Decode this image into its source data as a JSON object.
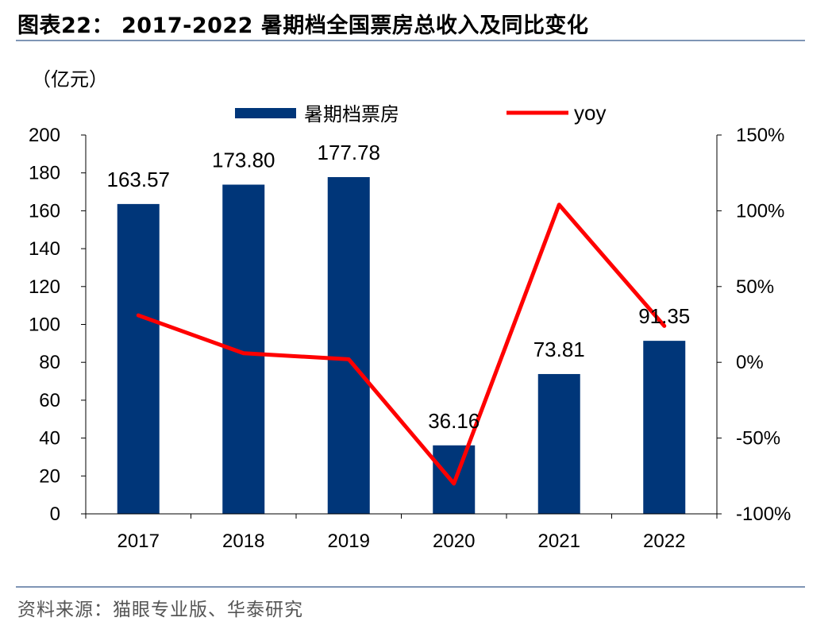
{
  "header": {
    "title": "图表22：  2017-2022 暑期档全国票房总收入及同比变化"
  },
  "unit_label": "（亿元）",
  "footer": {
    "source": "资料来源：猫眼专业版、华泰研究"
  },
  "colors": {
    "bar": "#003679",
    "line": "#ff0000",
    "rule": "#7f95b5"
  },
  "chart_data": {
    "type": "bar+line",
    "categories": [
      "2017",
      "2018",
      "2019",
      "2020",
      "2021",
      "2022"
    ],
    "series": [
      {
        "name": "暑期档票房",
        "type": "bar",
        "axis": "left",
        "values": [
          163.57,
          173.8,
          177.78,
          36.16,
          73.81,
          91.35
        ],
        "labels": [
          "163.57",
          "173.80",
          "177.78",
          "36.16",
          "73.81",
          "91.35"
        ]
      },
      {
        "name": "yoy",
        "type": "line",
        "axis": "right",
        "values": [
          0.31,
          0.06,
          0.02,
          -0.8,
          1.04,
          0.24
        ]
      }
    ],
    "ylim_left": [
      0,
      200
    ],
    "yticks_left": [
      "0",
      "20",
      "40",
      "60",
      "80",
      "100",
      "120",
      "140",
      "160",
      "180",
      "200"
    ],
    "ylim_right": [
      -1.0,
      1.5
    ],
    "yticks_right": [
      "-100%",
      "-50%",
      "0%",
      "50%",
      "100%",
      "150%"
    ],
    "legend_position": "top",
    "grid": false
  }
}
